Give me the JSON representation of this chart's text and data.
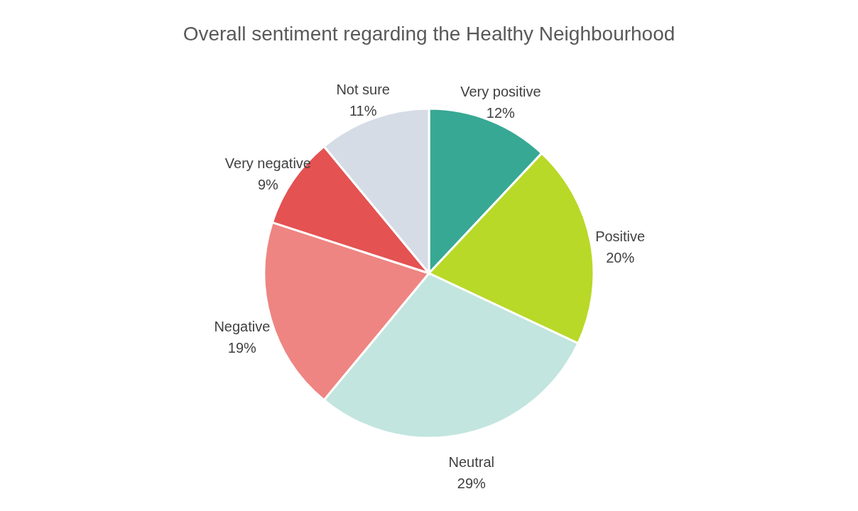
{
  "chart_data": {
    "type": "pie",
    "title": "Overall sentiment regarding the Healthy Neighbourhood",
    "categories": [
      "Very positive",
      "Positive",
      "Neutral",
      "Negative",
      "Very negative",
      "Not sure"
    ],
    "values": [
      12,
      20,
      29,
      19,
      9,
      11
    ],
    "value_labels": [
      "12%",
      "20%",
      "29%",
      "19%",
      "9%",
      "11%"
    ],
    "colors": [
      "#37a894",
      "#b8d928",
      "#c2e5df",
      "#ee8582",
      "#e45252",
      "#d6dce5"
    ]
  }
}
